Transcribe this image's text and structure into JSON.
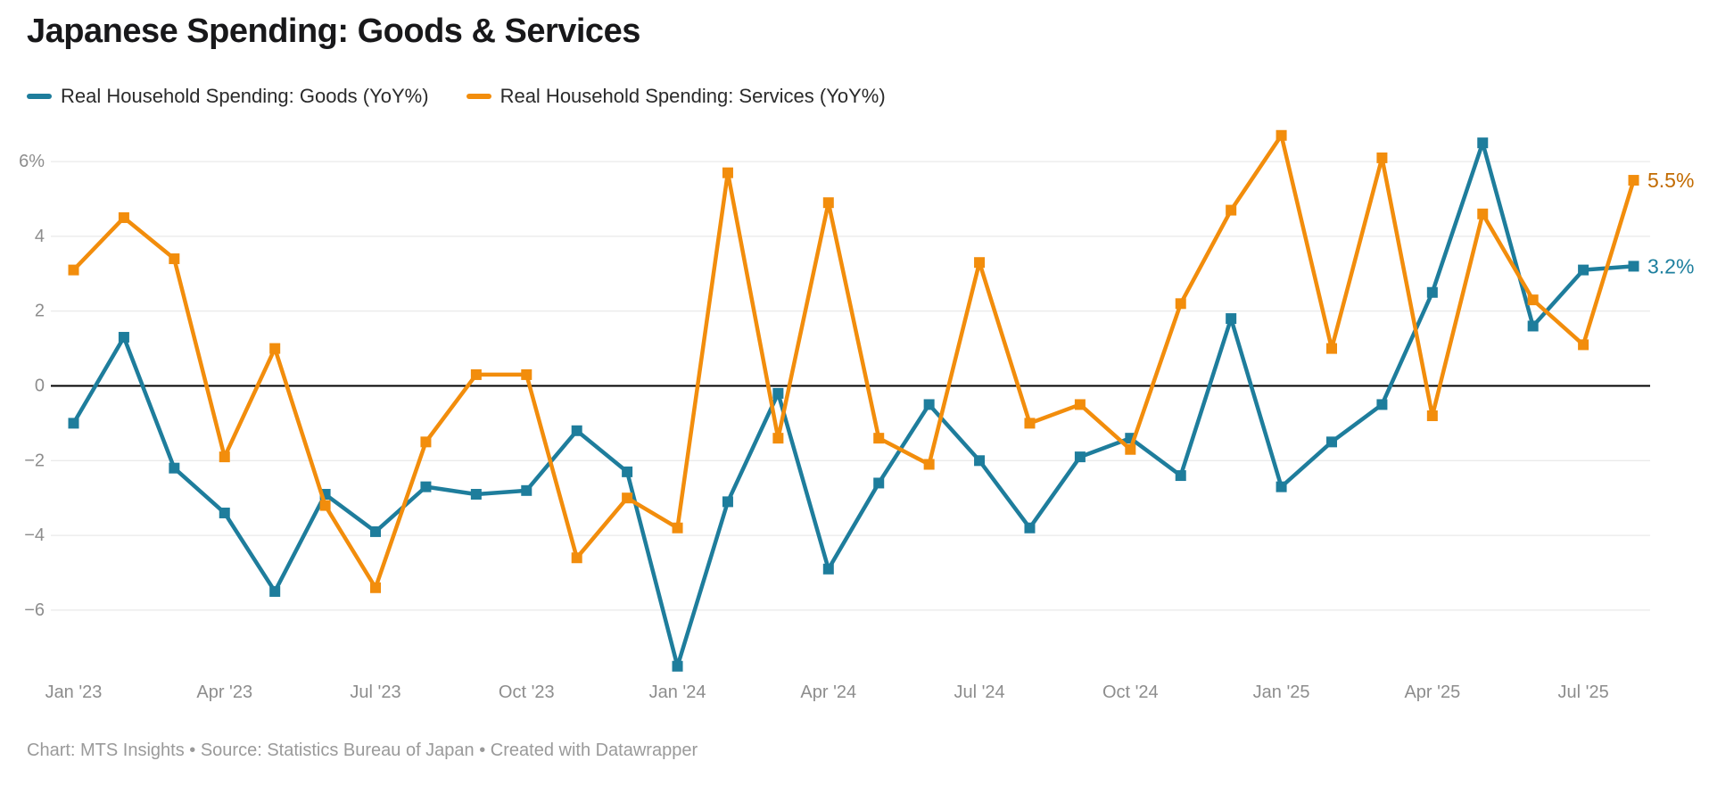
{
  "title": "Japanese Spending: Goods & Services",
  "legend": {
    "items": [
      {
        "label": "Real Household Spending: Goods (YoY%)",
        "color": "#1e7d9c"
      },
      {
        "label": "Real Household Spending: Services (YoY%)",
        "color": "#f28d0c"
      }
    ]
  },
  "footer": "Chart: MTS Insights • Source: Statistics Bureau of Japan • Created with Datawrapper",
  "chart_data": {
    "type": "line",
    "title": "Japanese Spending: Goods & Services",
    "x": [
      "Jan '23",
      "Feb '23",
      "Mar '23",
      "Apr '23",
      "May '23",
      "Jun '23",
      "Jul '23",
      "Aug '23",
      "Sep '23",
      "Oct '23",
      "Nov '23",
      "Dec '23",
      "Jan '24",
      "Feb '24",
      "Mar '24",
      "Apr '24",
      "May '24",
      "Jun '24",
      "Jul '24",
      "Aug '24",
      "Sep '24",
      "Oct '24",
      "Nov '24",
      "Dec '24",
      "Jan '25",
      "Feb '25",
      "Mar '25",
      "Apr '25",
      "May '25",
      "Jun '25",
      "Jul '25",
      "Aug '25"
    ],
    "series": [
      {
        "name": "Real Household Spending: Goods (YoY%)",
        "color": "#1e7d9c",
        "end_label": "3.2%",
        "end_label_color": "#1d7f9e",
        "values": [
          -1.0,
          1.3,
          -2.2,
          -3.4,
          -5.5,
          -2.9,
          -3.9,
          -2.7,
          -2.9,
          -2.8,
          -1.2,
          -2.3,
          -7.5,
          -3.1,
          -0.2,
          -4.9,
          -2.6,
          -0.5,
          -2.0,
          -3.8,
          -1.9,
          -1.4,
          -2.4,
          1.8,
          -2.7,
          -1.5,
          -0.5,
          2.5,
          6.5,
          1.6,
          3.1,
          3.2
        ]
      },
      {
        "name": "Real Household Spending: Services (YoY%)",
        "color": "#f28d0c",
        "end_label": "5.5%",
        "end_label_color": "#c26b00",
        "values": [
          3.1,
          4.5,
          3.4,
          -1.9,
          1.0,
          -3.2,
          -5.4,
          -1.5,
          0.3,
          0.3,
          -4.6,
          -3.0,
          -3.8,
          5.7,
          -1.4,
          4.9,
          -1.4,
          -2.1,
          3.3,
          -1.0,
          -0.5,
          -1.7,
          2.2,
          4.7,
          6.7,
          1.0,
          6.1,
          -0.8,
          4.6,
          2.3,
          1.1,
          5.5
        ]
      }
    ],
    "y_axis": {
      "ticks": [
        6,
        4,
        2,
        0,
        -2,
        -4,
        -6
      ],
      "tick_labels": [
        "6%",
        "4",
        "2",
        "0",
        "−2",
        "−4",
        "−6"
      ],
      "zero_line": true
    },
    "x_axis": {
      "tick_indices": [
        0,
        3,
        6,
        9,
        12,
        15,
        18,
        21,
        24,
        27,
        30
      ],
      "tick_labels": [
        "Jan '23",
        "Apr '23",
        "Jul '23",
        "Oct '23",
        "Jan '24",
        "Apr '24",
        "Jul '24",
        "Oct '24",
        "Jan '25",
        "Apr '25",
        "Jul '25"
      ]
    },
    "grid": true,
    "legend_position": "top",
    "marker": "square"
  }
}
